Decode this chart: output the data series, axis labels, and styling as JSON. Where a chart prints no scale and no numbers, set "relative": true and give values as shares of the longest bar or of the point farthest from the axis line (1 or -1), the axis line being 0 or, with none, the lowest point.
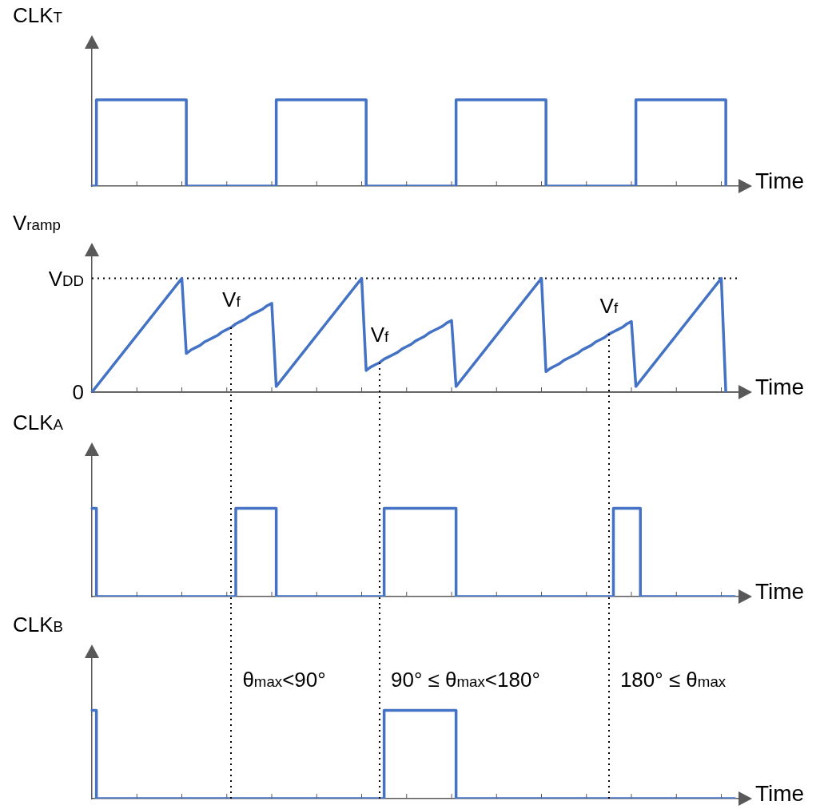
{
  "chart_data": [
    {
      "type": "step",
      "ylabel": "CLK$_{T}$",
      "xlabel": "Time",
      "relative": true,
      "categories": [
        null,
        null,
        null,
        null,
        null,
        null,
        null,
        null,
        null,
        null,
        null,
        null,
        null,
        null,
        null,
        null,
        null,
        null,
        null,
        null,
        null,
        null,
        null,
        null,
        null,
        null,
        null,
        null,
        null,
        null,
        null,
        null,
        null,
        null,
        null,
        null,
        null,
        null,
        null,
        null,
        null,
        null,
        null,
        null,
        null,
        null,
        null,
        null,
        null,
        null,
        null,
        null,
        null,
        null,
        null,
        null,
        null,
        null,
        null,
        null,
        null,
        null,
        null,
        null,
        null,
        null,
        null,
        null,
        null,
        null,
        null,
        null,
        null,
        null,
        null,
        null,
        null,
        null,
        null,
        null,
        null,
        null,
        null,
        null,
        null,
        null,
        null,
        null,
        null,
        null,
        null,
        null,
        null,
        null,
        null,
        null,
        null,
        null,
        null,
        null,
        null,
        null,
        null,
        null,
        null,
        null,
        null,
        null,
        null,
        null,
        null,
        null,
        null,
        null,
        null,
        null,
        null,
        null,
        null,
        null,
        null,
        null,
        null,
        null,
        null,
        null,
        null,
        null,
        null,
        null,
        null,
        null,
        null,
        null,
        null,
        null,
        null,
        null,
        null,
        null,
        null,
        null,
        null,
        null,
        null
      ],
      "series": [
        {
          "color": "#4472c4",
          "values": [
            0,
            1,
            1,
            1,
            1,
            1,
            1,
            1,
            1,
            1,
            1,
            1,
            1,
            1,
            1,
            1,
            1,
            1,
            1,
            1,
            1,
            0,
            0,
            0,
            0,
            0,
            0,
            0,
            0,
            0,
            0,
            0,
            0,
            0,
            0,
            0,
            0,
            0,
            0,
            0,
            0,
            1,
            1,
            1,
            1,
            1,
            1,
            1,
            1,
            1,
            1,
            1,
            1,
            1,
            1,
            1,
            1,
            1,
            1,
            1,
            1,
            0,
            0,
            0,
            0,
            0,
            0,
            0,
            0,
            0,
            0,
            0,
            0,
            0,
            0,
            0,
            0,
            0,
            0,
            0,
            0,
            1,
            1,
            1,
            1,
            1,
            1,
            1,
            1,
            1,
            1,
            1,
            1,
            1,
            1,
            1,
            1,
            1,
            1,
            1,
            1,
            0,
            0,
            0,
            0,
            0,
            0,
            0,
            0,
            0,
            0,
            0,
            0,
            0,
            0,
            0,
            0,
            0,
            0,
            0,
            0,
            1,
            1,
            1,
            1,
            1,
            1,
            1,
            1,
            1,
            1,
            1,
            1,
            1,
            1,
            1,
            1,
            1,
            1,
            1,
            1,
            0,
            null,
            null,
            null
          ]
        }
      ]
    },
    {
      "type": "line",
      "ylabel": "V$_{ramp}$",
      "xlabel": "Time",
      "relative": true,
      "categories": [
        null,
        null,
        null,
        null,
        null,
        null,
        null,
        null,
        null,
        null,
        null,
        null,
        null,
        null,
        null,
        null,
        null,
        null,
        null,
        null,
        null,
        null,
        null,
        null,
        null,
        null,
        null,
        null,
        null,
        null,
        null,
        null,
        null,
        null,
        null,
        null,
        null,
        null,
        null,
        null,
        null,
        null,
        null,
        null,
        null,
        null,
        null,
        null,
        null,
        null,
        null,
        null,
        null,
        null,
        null,
        null,
        null,
        null,
        null,
        null,
        null,
        null,
        null,
        null,
        null,
        null,
        null,
        null,
        null,
        null,
        null,
        null,
        null,
        null,
        null,
        null,
        null,
        null,
        null,
        null,
        null,
        null,
        null,
        null,
        null,
        null,
        null,
        null,
        null,
        null,
        null,
        null,
        null,
        null,
        null,
        null,
        null,
        null,
        null,
        null,
        null,
        null,
        null,
        null,
        null,
        null,
        null,
        null,
        null,
        null,
        null,
        null,
        null,
        null,
        null,
        null,
        null,
        null,
        null,
        null,
        null,
        null,
        null,
        null,
        null,
        null,
        null,
        null,
        null,
        null,
        null,
        null,
        null,
        null,
        null,
        null,
        null,
        null,
        null,
        null,
        null,
        null,
        null,
        null,
        null
      ],
      "series": [
        {
          "color": "#4472c4",
          "values": [
            0,
            0.05,
            0.1,
            0.15,
            0.2,
            0.25,
            0.3,
            0.35,
            0.4,
            0.45,
            0.5,
            0.55,
            0.6,
            0.65,
            0.7,
            0.75,
            0.8,
            0.85,
            0.9,
            0.95,
            1,
            0.34,
            0.37,
            0.39,
            0.41,
            0.44,
            0.46,
            0.48,
            0.5,
            0.53,
            0.55,
            0.57,
            0.6,
            0.62,
            0.64,
            0.67,
            0.69,
            0.71,
            0.73,
            0.76,
            0.78,
            0.05,
            0.1,
            0.15,
            0.2,
            0.25,
            0.3,
            0.35,
            0.4,
            0.45,
            0.5,
            0.55,
            0.6,
            0.65,
            0.7,
            0.75,
            0.8,
            0.85,
            0.9,
            0.95,
            1,
            0.19,
            0.22,
            0.24,
            0.26,
            0.29,
            0.31,
            0.33,
            0.35,
            0.38,
            0.4,
            0.42,
            0.45,
            0.47,
            0.49,
            0.52,
            0.54,
            0.56,
            0.58,
            0.61,
            0.63,
            0.05,
            0.1,
            0.15,
            0.2,
            0.25,
            0.3,
            0.35,
            0.4,
            0.45,
            0.5,
            0.55,
            0.6,
            0.65,
            0.7,
            0.75,
            0.8,
            0.85,
            0.9,
            0.95,
            1,
            0.18,
            0.21,
            0.23,
            0.25,
            0.28,
            0.3,
            0.32,
            0.34,
            0.37,
            0.39,
            0.41,
            0.44,
            0.46,
            0.48,
            0.51,
            0.53,
            0.55,
            0.57,
            0.6,
            0.62,
            0.05,
            0.1,
            0.15,
            0.2,
            0.25,
            0.3,
            0.35,
            0.4,
            0.45,
            0.5,
            0.55,
            0.6,
            0.65,
            0.7,
            0.75,
            0.8,
            0.85,
            0.9,
            0.95,
            1,
            0,
            null,
            null,
            null
          ]
        }
      ],
      "ref_lines": [
        {
          "axis": "y",
          "value": 1,
          "label": "V$_{DD}$",
          "color": "#000000",
          "line_style": "dotted"
        },
        {
          "axis": "y",
          "value": 0,
          "label": "0",
          "color": "#595959",
          "line_style": "solid"
        }
      ],
      "annotations": [
        "V$_{f}$",
        "V$_{f}$",
        "V$_{f}$"
      ]
    },
    {
      "type": "step",
      "ylabel": "CLK$_{A}$",
      "xlabel": "Time",
      "relative": true,
      "categories": [
        null,
        null,
        null,
        null,
        null,
        null,
        null,
        null,
        null,
        null,
        null,
        null,
        null,
        null,
        null,
        null,
        null,
        null,
        null,
        null,
        null,
        null,
        null,
        null,
        null,
        null,
        null,
        null,
        null,
        null,
        null,
        null,
        null,
        null,
        null,
        null,
        null,
        null,
        null,
        null,
        null,
        null,
        null,
        null,
        null,
        null,
        null,
        null,
        null,
        null,
        null,
        null,
        null,
        null,
        null,
        null,
        null,
        null,
        null,
        null,
        null,
        null,
        null,
        null,
        null,
        null,
        null,
        null,
        null,
        null,
        null,
        null,
        null,
        null,
        null,
        null,
        null,
        null,
        null,
        null,
        null,
        null,
        null,
        null,
        null,
        null,
        null,
        null,
        null,
        null,
        null,
        null,
        null,
        null,
        null,
        null,
        null,
        null,
        null,
        null,
        null,
        null,
        null,
        null,
        null,
        null,
        null,
        null,
        null,
        null,
        null,
        null,
        null,
        null,
        null,
        null,
        null,
        null,
        null,
        null,
        null,
        null,
        null,
        null,
        null,
        null,
        null,
        null,
        null,
        null,
        null,
        null,
        null,
        null,
        null,
        null,
        null,
        null,
        null,
        null,
        null,
        null,
        null,
        null,
        null
      ],
      "series": [
        {
          "color": "#4472c4",
          "values": [
            1,
            0,
            0,
            0,
            0,
            0,
            0,
            0,
            0,
            0,
            0,
            0,
            0,
            0,
            0,
            0,
            0,
            0,
            0,
            0,
            0,
            0,
            0,
            0,
            0,
            0,
            0,
            0,
            0,
            0,
            0,
            0,
            1,
            1,
            1,
            1,
            1,
            1,
            1,
            1,
            1,
            0,
            0,
            0,
            0,
            0,
            0,
            0,
            0,
            0,
            0,
            0,
            0,
            0,
            0,
            0,
            0,
            0,
            0,
            0,
            0,
            0,
            0,
            0,
            0,
            1,
            1,
            1,
            1,
            1,
            1,
            1,
            1,
            1,
            1,
            1,
            1,
            1,
            1,
            1,
            1,
            0,
            0,
            0,
            0,
            0,
            0,
            0,
            0,
            0,
            0,
            0,
            0,
            0,
            0,
            0,
            0,
            0,
            0,
            0,
            0,
            0,
            0,
            0,
            0,
            0,
            0,
            0,
            0,
            0,
            0,
            0,
            0,
            0,
            0,
            0,
            1,
            1,
            1,
            1,
            1,
            1,
            0,
            0,
            0,
            0,
            0,
            0,
            0,
            0,
            0,
            0,
            0,
            0,
            0,
            0,
            0,
            0,
            0,
            0,
            0,
            0,
            0,
            0,
            null
          ]
        }
      ]
    },
    {
      "type": "step",
      "ylabel": "CLK$_{B}$",
      "xlabel": "Time",
      "relative": true,
      "categories": [
        null,
        null,
        null,
        null,
        null,
        null,
        null,
        null,
        null,
        null,
        null,
        null,
        null,
        null,
        null,
        null,
        null,
        null,
        null,
        null,
        null,
        null,
        null,
        null,
        null,
        null,
        null,
        null,
        null,
        null,
        null,
        null,
        null,
        null,
        null,
        null,
        null,
        null,
        null,
        null,
        null,
        null,
        null,
        null,
        null,
        null,
        null,
        null,
        null,
        null,
        null,
        null,
        null,
        null,
        null,
        null,
        null,
        null,
        null,
        null,
        null,
        null,
        null,
        null,
        null,
        null,
        null,
        null,
        null,
        null,
        null,
        null,
        null,
        null,
        null,
        null,
        null,
        null,
        null,
        null,
        null,
        null,
        null,
        null,
        null,
        null,
        null,
        null,
        null,
        null,
        null,
        null,
        null,
        null,
        null,
        null,
        null,
        null,
        null,
        null,
        null,
        null,
        null,
        null,
        null,
        null,
        null,
        null,
        null,
        null,
        null,
        null,
        null,
        null,
        null,
        null,
        null,
        null,
        null,
        null,
        null,
        null,
        null,
        null,
        null,
        null,
        null,
        null,
        null,
        null,
        null,
        null,
        null,
        null,
        null,
        null,
        null,
        null,
        null,
        null,
        null,
        null,
        null,
        null,
        null
      ],
      "series": [
        {
          "color": "#4472c4",
          "values": [
            1,
            0,
            0,
            0,
            0,
            0,
            0,
            0,
            0,
            0,
            0,
            0,
            0,
            0,
            0,
            0,
            0,
            0,
            0,
            0,
            0,
            0,
            0,
            0,
            0,
            0,
            0,
            0,
            0,
            0,
            0,
            0,
            0,
            0,
            0,
            0,
            0,
            0,
            0,
            0,
            0,
            0,
            0,
            0,
            0,
            0,
            0,
            0,
            0,
            0,
            0,
            0,
            0,
            0,
            0,
            0,
            0,
            0,
            0,
            0,
            0,
            0,
            0,
            0,
            0,
            1,
            1,
            1,
            1,
            1,
            1,
            1,
            1,
            1,
            1,
            1,
            1,
            1,
            1,
            1,
            1,
            0,
            0,
            0,
            0,
            0,
            0,
            0,
            0,
            0,
            0,
            0,
            0,
            0,
            0,
            0,
            0,
            0,
            0,
            0,
            0,
            0,
            0,
            0,
            0,
            0,
            0,
            0,
            0,
            0,
            0,
            0,
            0,
            0,
            0,
            0,
            0,
            0,
            0,
            0,
            0,
            0,
            0,
            0,
            0,
            0,
            0,
            0,
            0,
            0,
            0,
            0,
            0,
            0,
            0,
            0,
            0,
            0,
            0,
            0,
            0,
            0,
            0,
            0,
            null
          ]
        }
      ],
      "annotations": [
        "θ$_{max}$<90°",
        "90° ≤ θ$_{max}$<180°",
        "180° ≤ θ$_{max}$"
      ]
    }
  ]
}
